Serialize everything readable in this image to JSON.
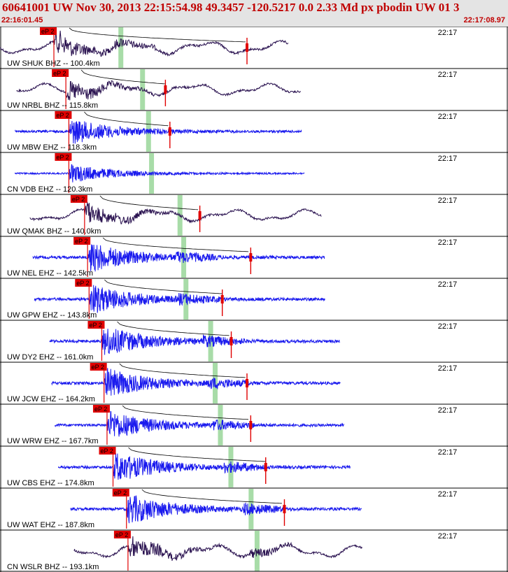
{
  "header": {
    "title": "60641001 UW Nov 30, 2013 22:15:54.98    49.3457 -120.5217  0.0 2.33 Md px pbodin UW 01   3",
    "start_time": "22:16:01.45",
    "end_time": "22:17:08.97"
  },
  "colors": {
    "header_bg": "#e4e4e4",
    "header_text": "#c00000",
    "trace_bb": "#2a1250",
    "trace_sp": "#1a1aee",
    "pick": "#e00000",
    "s_window": "#a8dca8",
    "curve": "#000000"
  },
  "chart_data": {
    "type": "line",
    "time_window_s": [
      0,
      67.5
    ],
    "minute_label": "22:17",
    "minute_label_time_s": 58.5,
    "traces": [
      {
        "label": "UW SHUK BHZ -- 100.4km",
        "band": "bb",
        "p_pick": "eP 2",
        "p_time": 7.2,
        "s_time": 16.1,
        "coda_time": 33.0,
        "amp": 1.0,
        "rec_start": 0.0,
        "rec_end": 38.5
      },
      {
        "label": "UW NRBL BHZ -- 115.8km",
        "band": "bb",
        "p_pick": "eP 2",
        "p_time": 8.8,
        "s_time": 19.0,
        "coda_time": 22.1,
        "amp": 0.9,
        "rec_start": 2.2,
        "rec_end": 40.2
      },
      {
        "label": "UW MBW EHZ -- 118.3km",
        "band": "sp",
        "p_pick": "eP 2",
        "p_time": 9.2,
        "s_time": 19.8,
        "coda_time": 22.7,
        "amp": 0.85,
        "rec_start": 2.0,
        "rec_end": 40.3
      },
      {
        "label": "CN VDB EHZ -- 120.3km",
        "band": "sp",
        "p_pick": "eP 2",
        "p_time": 9.2,
        "s_time": 20.2,
        "coda_time": null,
        "amp": 0.6,
        "rec_start": 2.0,
        "rec_end": 40.7
      },
      {
        "label": "UW QMAK BHZ -- 140.0km",
        "band": "bb",
        "p_pick": "eP 2",
        "p_time": 11.3,
        "s_time": 24.0,
        "coda_time": 26.7,
        "amp": 0.9,
        "rec_start": 4.0,
        "rec_end": 43.0
      },
      {
        "label": "UW NEL EHZ -- 142.5km",
        "band": "sp",
        "p_pick": "eP 2",
        "p_time": 11.7,
        "s_time": 24.5,
        "coda_time": 33.5,
        "amp": 1.0,
        "rec_start": 4.4,
        "rec_end": 43.4
      },
      {
        "label": "UW GPW EHZ -- 143.8km",
        "band": "sp",
        "p_pick": "eP 2",
        "p_time": 11.9,
        "s_time": 24.8,
        "coda_time": 29.7,
        "amp": 1.0,
        "rec_start": 4.6,
        "rec_end": 43.4
      },
      {
        "label": "UW DY2 EHZ -- 161.0km",
        "band": "sp",
        "p_pick": "eP 2",
        "p_time": 13.6,
        "s_time": 28.1,
        "coda_time": 30.9,
        "amp": 1.0,
        "rec_start": 6.6,
        "rec_end": 45.4
      },
      {
        "label": "UW JCW EHZ -- 164.2km",
        "band": "sp",
        "p_pick": "eP 2",
        "p_time": 13.9,
        "s_time": 28.7,
        "coda_time": 33.0,
        "amp": 1.0,
        "rec_start": 6.9,
        "rec_end": 45.5
      },
      {
        "label": "UW WRW EHZ -- 167.7km",
        "band": "sp",
        "p_pick": "eP 2",
        "p_time": 14.3,
        "s_time": 29.4,
        "coda_time": 33.5,
        "amp": 0.95,
        "rec_start": 7.3,
        "rec_end": 46.0
      },
      {
        "label": "UW CBS EHZ -- 174.8km",
        "band": "sp",
        "p_pick": "eP 2",
        "p_time": 15.1,
        "s_time": 30.8,
        "coda_time": 35.5,
        "amp": 1.0,
        "rec_start": 7.8,
        "rec_end": 46.8
      },
      {
        "label": "UW WAT EHZ -- 187.8km",
        "band": "sp",
        "p_pick": "eP 2",
        "p_time": 16.9,
        "s_time": 33.5,
        "coda_time": 38.0,
        "amp": 1.0,
        "rec_start": 9.4,
        "rec_end": 48.3
      },
      {
        "label": "CN WSLR BHZ -- 193.1km",
        "band": "bb",
        "p_pick": "eP 2",
        "p_time": 17.1,
        "s_time": 34.3,
        "coda_time": null,
        "amp": 1.0,
        "rec_start": 9.9,
        "rec_end": 48.4
      }
    ]
  }
}
